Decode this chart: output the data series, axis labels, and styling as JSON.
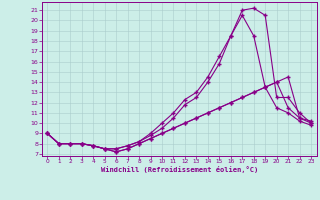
{
  "xlabel": "Windchill (Refroidissement éolien,°C)",
  "background_color": "#cceee8",
  "grid_color": "#aacccc",
  "line_color": "#880088",
  "xlim": [
    -0.5,
    23.5
  ],
  "ylim": [
    6.8,
    21.8
  ],
  "xticks": [
    0,
    1,
    2,
    3,
    4,
    5,
    6,
    7,
    8,
    9,
    10,
    11,
    12,
    13,
    14,
    15,
    16,
    17,
    18,
    19,
    20,
    21,
    22,
    23
  ],
  "yticks": [
    7,
    8,
    9,
    10,
    11,
    12,
    13,
    14,
    15,
    16,
    17,
    18,
    19,
    20,
    21
  ],
  "line1_x": [
    0,
    1,
    2,
    3,
    4,
    5,
    6,
    7,
    8,
    9,
    10,
    11,
    12,
    13,
    14,
    15,
    16,
    17,
    18,
    19,
    20,
    21,
    22,
    23
  ],
  "line1_y": [
    9.0,
    8.0,
    8.0,
    8.0,
    7.8,
    7.5,
    7.5,
    7.8,
    8.2,
    9.0,
    10.0,
    11.0,
    12.3,
    13.0,
    14.5,
    16.5,
    18.5,
    21.0,
    21.2,
    20.5,
    12.5,
    12.5,
    11.0,
    10.0
  ],
  "line2_x": [
    0,
    1,
    2,
    3,
    4,
    5,
    6,
    7,
    8,
    9,
    10,
    11,
    12,
    13,
    14,
    15,
    16,
    17,
    18,
    19,
    20,
    21,
    22,
    23
  ],
  "line2_y": [
    9.0,
    8.0,
    8.0,
    8.0,
    7.8,
    7.5,
    7.5,
    7.8,
    8.2,
    8.8,
    9.5,
    10.5,
    11.8,
    12.5,
    14.0,
    15.8,
    18.5,
    20.5,
    18.5,
    13.5,
    11.5,
    11.0,
    10.2,
    9.8
  ],
  "line3_x": [
    0,
    1,
    2,
    3,
    4,
    5,
    6,
    7,
    8,
    9,
    10,
    11,
    12,
    13,
    14,
    15,
    16,
    17,
    18,
    19,
    20,
    21,
    22,
    23
  ],
  "line3_y": [
    9.0,
    8.0,
    8.0,
    8.0,
    7.8,
    7.5,
    7.2,
    7.5,
    8.0,
    8.5,
    9.0,
    9.5,
    10.0,
    10.5,
    11.0,
    11.5,
    12.0,
    12.5,
    13.0,
    13.5,
    14.0,
    11.5,
    10.5,
    10.2
  ],
  "line4_x": [
    0,
    1,
    2,
    3,
    4,
    5,
    6,
    7,
    8,
    9,
    10,
    11,
    12,
    13,
    14,
    15,
    16,
    17,
    18,
    19,
    20,
    21,
    22,
    23
  ],
  "line4_y": [
    9.0,
    8.0,
    8.0,
    8.0,
    7.8,
    7.5,
    7.2,
    7.5,
    8.0,
    8.5,
    9.0,
    9.5,
    10.0,
    10.5,
    11.0,
    11.5,
    12.0,
    12.5,
    13.0,
    13.5,
    14.0,
    14.5,
    10.5,
    10.0
  ],
  "marker": "+",
  "markersize": 3,
  "linewidth": 0.8
}
